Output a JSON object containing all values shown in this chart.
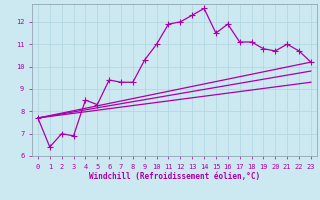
{
  "xlabel": "Windchill (Refroidissement éolien,°C)",
  "background_color": "#cce8f0",
  "grid_color": "#b0d4e0",
  "line_color": "#aa00aa",
  "xlim": [
    -0.5,
    23.5
  ],
  "ylim": [
    6,
    12.8
  ],
  "yticks": [
    6,
    7,
    8,
    9,
    10,
    11,
    12
  ],
  "xticks": [
    0,
    1,
    2,
    3,
    4,
    5,
    6,
    7,
    8,
    9,
    10,
    11,
    12,
    13,
    14,
    15,
    16,
    17,
    18,
    19,
    20,
    21,
    22,
    23
  ],
  "line1_x": [
    0,
    1,
    2,
    3,
    4,
    5,
    6,
    7,
    8,
    9,
    10,
    11,
    12,
    13,
    14,
    15,
    16,
    17,
    18,
    19,
    20,
    21,
    22,
    23
  ],
  "line1_y": [
    7.7,
    6.4,
    7.0,
    6.9,
    8.5,
    8.3,
    9.4,
    9.3,
    9.3,
    10.3,
    11.0,
    11.9,
    12.0,
    12.3,
    12.6,
    11.5,
    11.9,
    11.1,
    11.1,
    10.8,
    10.7,
    11.0,
    10.7,
    10.2
  ],
  "trend_lines": [
    {
      "x": [
        0,
        23
      ],
      "y": [
        7.7,
        10.2
      ]
    },
    {
      "x": [
        0,
        23
      ],
      "y": [
        7.7,
        9.8
      ]
    },
    {
      "x": [
        0,
        23
      ],
      "y": [
        7.7,
        9.3
      ]
    }
  ],
  "tick_label_size": 5.0,
  "xlabel_size": 5.5
}
